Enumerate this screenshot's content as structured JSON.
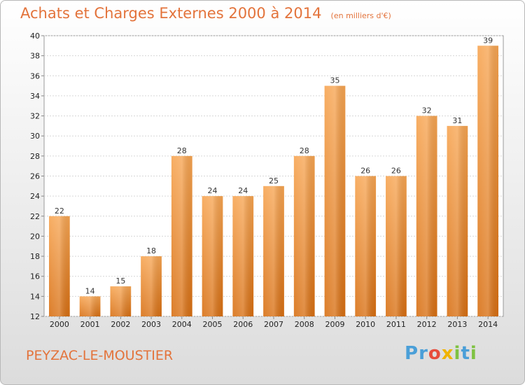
{
  "chart_data": {
    "type": "bar",
    "title": "Achats et Charges Externes 2000 à 2014",
    "subtitle": "(en milliers d'€)",
    "categories": [
      "2000",
      "2001",
      "2002",
      "2003",
      "2004",
      "2005",
      "2006",
      "2007",
      "2008",
      "2009",
      "2010",
      "2011",
      "2012",
      "2013",
      "2014"
    ],
    "values": [
      22,
      14,
      15,
      18,
      28,
      24,
      24,
      25,
      28,
      35,
      26,
      26,
      32,
      31,
      39
    ],
    "ylim": [
      12,
      40
    ],
    "yticks": [
      12,
      14,
      16,
      18,
      20,
      22,
      24,
      26,
      28,
      30,
      32,
      34,
      36,
      38,
      40
    ],
    "grid": true,
    "bar_color": "#e67e22"
  },
  "footer": {
    "commune": "PEYZAC-LE-MOUSTIER",
    "logo_letters": [
      {
        "char": "P",
        "color": "#4a9fd8"
      },
      {
        "char": "r",
        "color": "#4a9fd8"
      },
      {
        "char": "o",
        "color": "#e74c3c"
      },
      {
        "char": "x",
        "color": "#f0b400"
      },
      {
        "char": "i",
        "color": "#7fc242"
      },
      {
        "char": "t",
        "color": "#4a9fd8"
      },
      {
        "char": "i",
        "color": "#7fc242"
      }
    ]
  }
}
